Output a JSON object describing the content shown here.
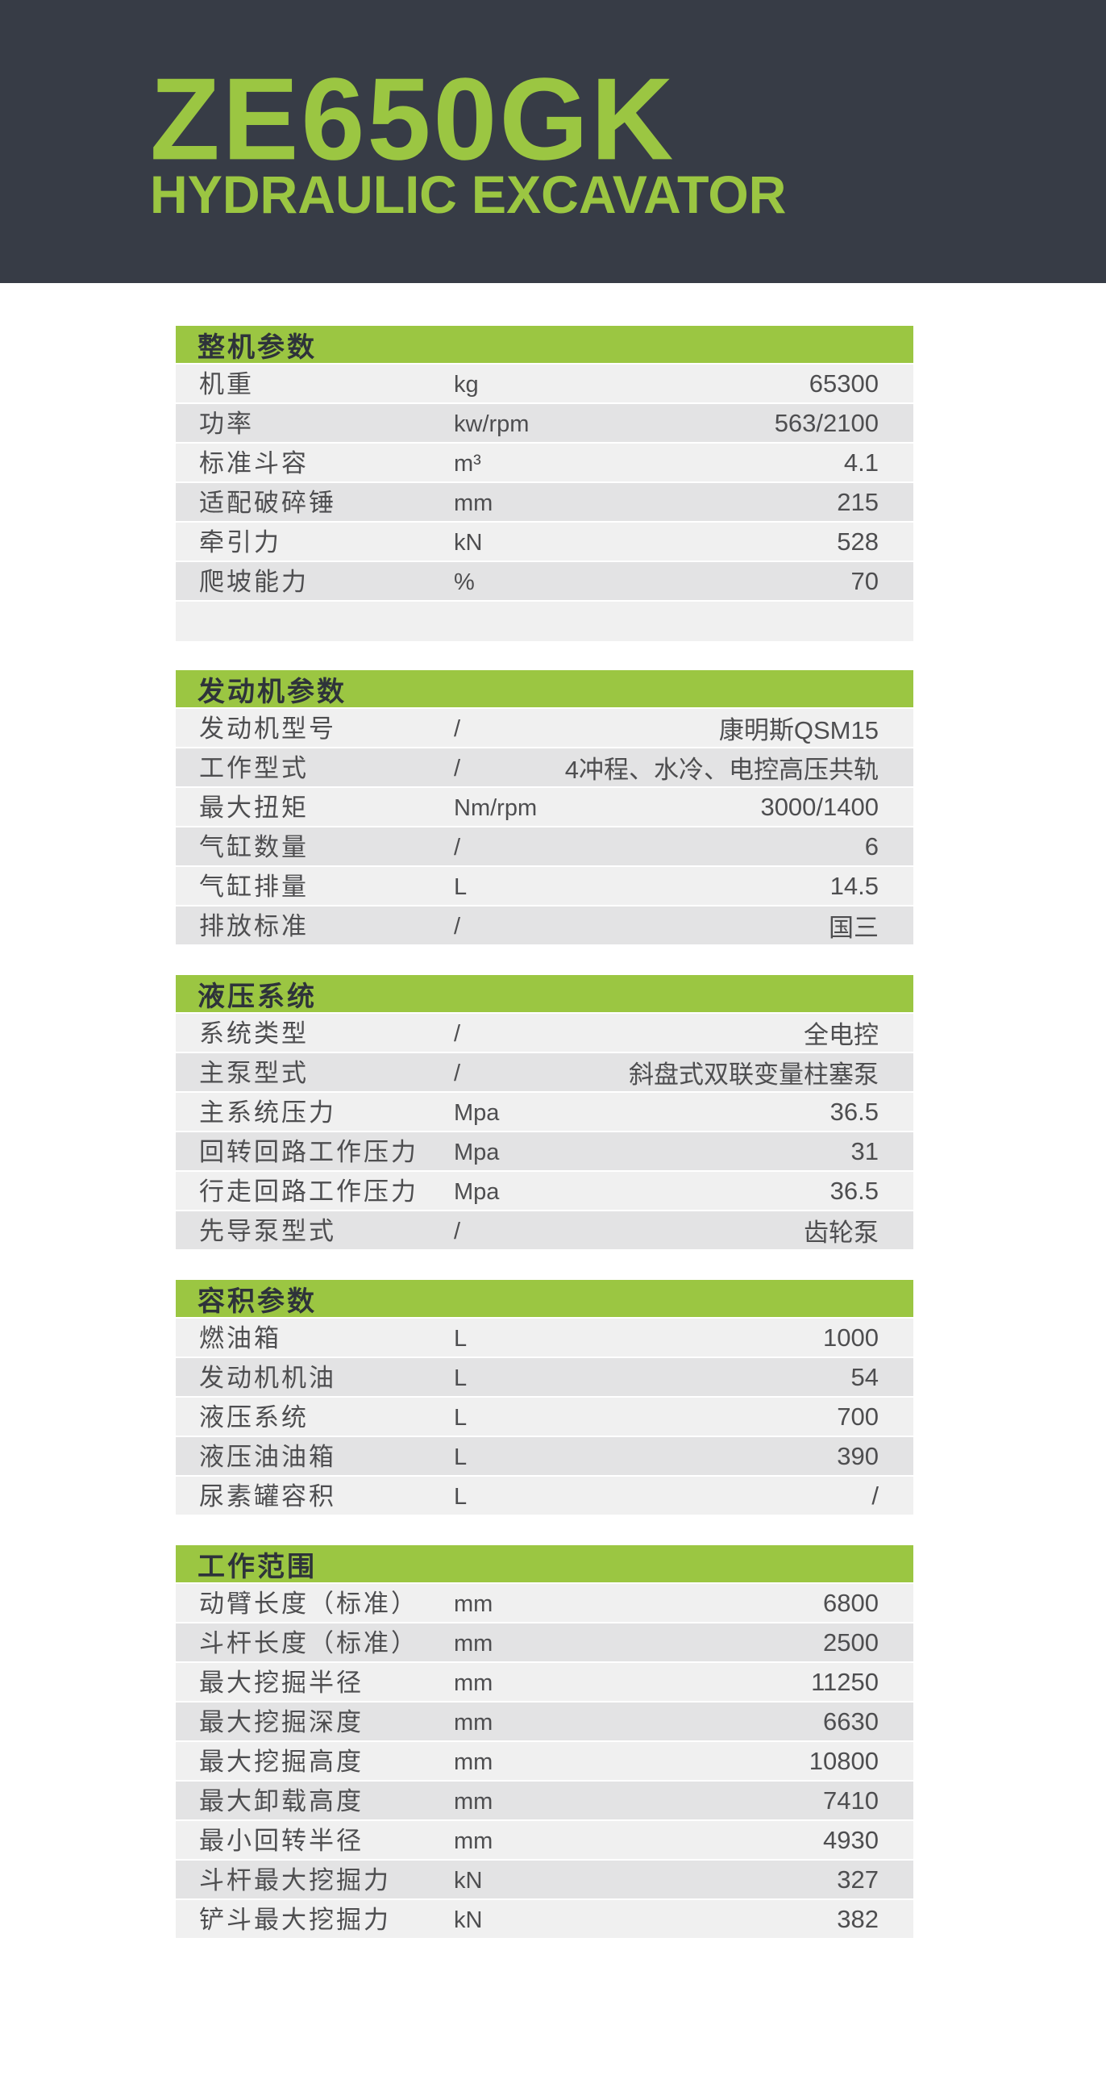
{
  "header": {
    "model": "ZE650GK",
    "subtitle": "HYDRAULIC EXCAVATOR"
  },
  "colors": {
    "dark": "#373C46",
    "green": "#9BC642",
    "header-text": "#2E333A",
    "row-light": "#F0F0F0",
    "row-dark": "#E3E3E4",
    "text": "#4E4E50"
  },
  "sections": [
    {
      "title": "整机参数",
      "trailing_blank": true,
      "rows": [
        {
          "label": "机重",
          "unit": "kg",
          "value": "65300"
        },
        {
          "label": "功率",
          "unit": "kw/rpm",
          "value": "563/2100"
        },
        {
          "label": "标准斗容",
          "unit": "m³",
          "value": "4.1"
        },
        {
          "label": "适配破碎锤",
          "unit": "mm",
          "value": "215"
        },
        {
          "label": "牵引力",
          "unit": "kN",
          "value": "528"
        },
        {
          "label": "爬坡能力",
          "unit": "%",
          "value": "70"
        }
      ]
    },
    {
      "title": "发动机参数",
      "trailing_blank": false,
      "rows": [
        {
          "label": "发动机型号",
          "unit": "/",
          "value": "康明斯QSM15"
        },
        {
          "label": "工作型式",
          "unit": "/",
          "value": "4冲程、水冷、电控高压共轨"
        },
        {
          "label": "最大扭矩",
          "unit": "Nm/rpm",
          "value": "3000/1400"
        },
        {
          "label": "气缸数量",
          "unit": "/",
          "value": "6"
        },
        {
          "label": "气缸排量",
          "unit": "L",
          "value": "14.5"
        },
        {
          "label": "排放标准",
          "unit": "/",
          "value": "国三"
        }
      ]
    },
    {
      "title": "液压系统",
      "trailing_blank": false,
      "rows": [
        {
          "label": "系统类型",
          "unit": "/",
          "value": "全电控"
        },
        {
          "label": "主泵型式",
          "unit": "/",
          "value": "斜盘式双联变量柱塞泵"
        },
        {
          "label": "主系统压力",
          "unit": "Mpa",
          "value": "36.5"
        },
        {
          "label": "回转回路工作压力",
          "unit": "Mpa",
          "value": "31"
        },
        {
          "label": "行走回路工作压力",
          "unit": "Mpa",
          "value": "36.5"
        },
        {
          "label": "先导泵型式",
          "unit": "/",
          "value": "齿轮泵"
        }
      ]
    },
    {
      "title": "容积参数",
      "trailing_blank": false,
      "rows": [
        {
          "label": "燃油箱",
          "unit": "L",
          "value": "1000"
        },
        {
          "label": "发动机机油",
          "unit": "L",
          "value": "54"
        },
        {
          "label": "液压系统",
          "unit": "L",
          "value": "700"
        },
        {
          "label": "液压油油箱",
          "unit": "L",
          "value": "390"
        },
        {
          "label": "尿素罐容积",
          "unit": "L",
          "value": "/"
        }
      ]
    },
    {
      "title": "工作范围",
      "trailing_blank": false,
      "rows": [
        {
          "label": "动臂长度（标准）",
          "unit": "mm",
          "value": "6800"
        },
        {
          "label": "斗杆长度（标准）",
          "unit": "mm",
          "value": "2500"
        },
        {
          "label": "最大挖掘半径",
          "unit": "mm",
          "value": "11250"
        },
        {
          "label": "最大挖掘深度",
          "unit": "mm",
          "value": "6630"
        },
        {
          "label": "最大挖掘高度",
          "unit": "mm",
          "value": "10800"
        },
        {
          "label": "最大卸载高度",
          "unit": "mm",
          "value": "7410"
        },
        {
          "label": "最小回转半径",
          "unit": "mm",
          "value": "4930"
        },
        {
          "label": "斗杆最大挖掘力",
          "unit": "kN",
          "value": "327"
        },
        {
          "label": "铲斗最大挖掘力",
          "unit": "kN",
          "value": "382"
        }
      ]
    }
  ]
}
